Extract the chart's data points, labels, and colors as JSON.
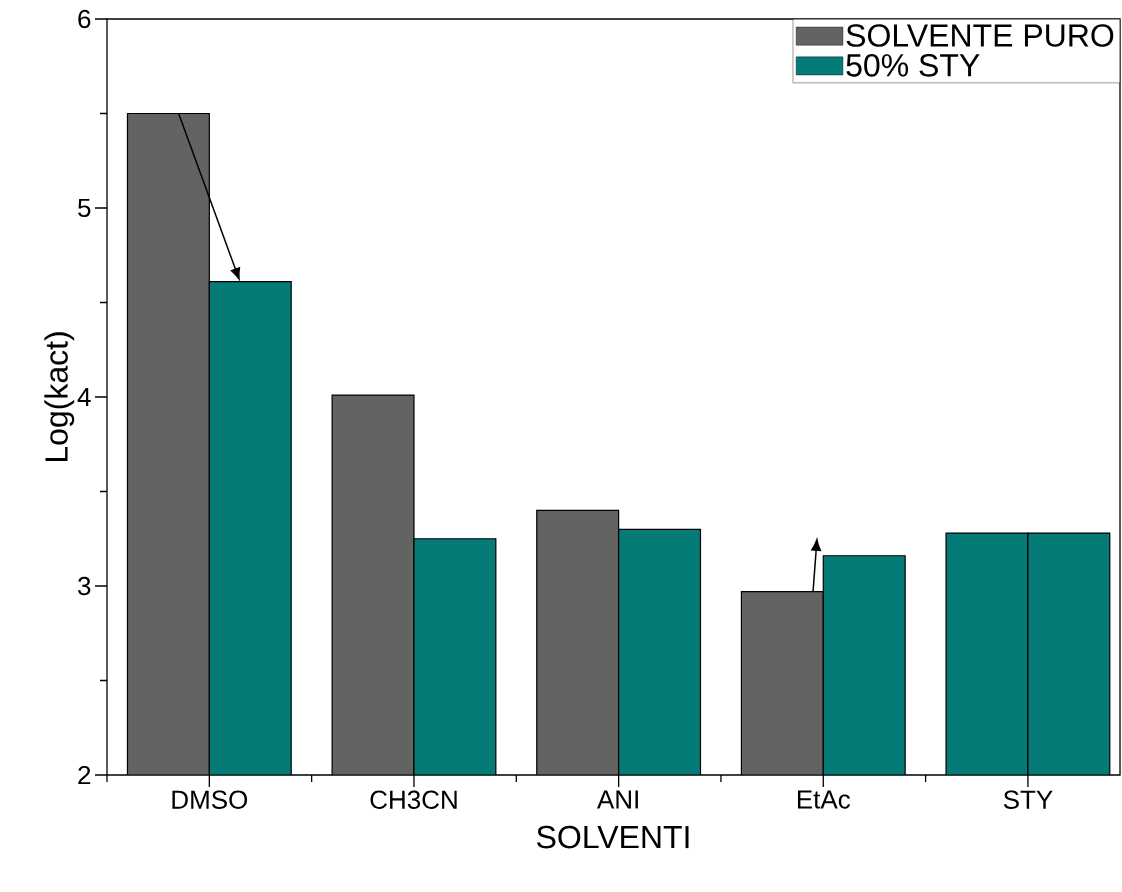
{
  "chart_data": {
    "type": "bar",
    "xlabel": "SOLVENTI",
    "ylabel": "Log(kact)",
    "categories": [
      "DMSO",
      "CH3CN",
      "ANI",
      "EtAc",
      "STY"
    ],
    "series": [
      {
        "name": "SOLVENTE PURO",
        "color": "#636462",
        "colors": [
          "#636462",
          "#636462",
          "#636462",
          "#636462",
          "#057b78"
        ],
        "values": [
          5.5,
          4.01,
          3.4,
          2.97,
          3.28
        ]
      },
      {
        "name": "50% STY",
        "color": "#057b78",
        "values": [
          4.61,
          3.25,
          3.3,
          3.16,
          3.28
        ]
      }
    ],
    "ylim": [
      2,
      6
    ],
    "yticks": [
      2,
      3,
      4,
      5,
      6
    ],
    "grid": false,
    "legend": "top right"
  }
}
